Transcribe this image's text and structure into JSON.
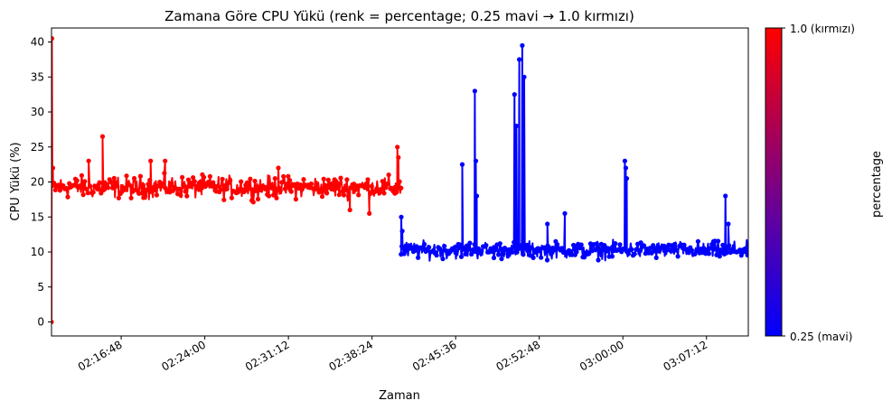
{
  "chart_data": {
    "type": "line",
    "title": "Zamana Göre CPU Yükü (renk = percentage; 0.25 mavi → 1.0 kırmızı)",
    "xlabel": "Zaman",
    "ylabel": "CPU Yükü (%)",
    "ylim": [
      -2,
      42
    ],
    "xlim": [
      "02:10:48",
      "03:10:48"
    ],
    "yticks": [
      0,
      5,
      10,
      15,
      20,
      25,
      30,
      35,
      40
    ],
    "xticks": [
      "02:16:48",
      "02:24:00",
      "02:31:12",
      "02:38:24",
      "02:45:36",
      "02:52:48",
      "03:00:00",
      "03:07:12"
    ],
    "grid": false,
    "colorbar": {
      "label": "percentage",
      "min_label": "0.25 (mavi)",
      "max_label": "1.0 (kırmızı)",
      "min_value": 0.25,
      "max_value": 1.0,
      "min_color": "#0000ff",
      "max_color": "#ff0000"
    },
    "series": [
      {
        "color": "#ff0000",
        "percentage": 1.0,
        "x_range": [
          "02:10:48",
          "02:40:54"
        ],
        "baseline": 19,
        "band": [
          17,
          21.5
        ],
        "points": [
          {
            "x": "02:10:48",
            "y": 0
          },
          {
            "x": "02:10:50",
            "y": 40.5
          },
          {
            "x": "02:10:55",
            "y": 22
          },
          {
            "x": "02:15:12",
            "y": 26.5
          },
          {
            "x": "02:14:00",
            "y": 23
          },
          {
            "x": "02:19:20",
            "y": 23
          },
          {
            "x": "02:20:35",
            "y": 23
          },
          {
            "x": "02:30:20",
            "y": 22
          },
          {
            "x": "02:38:10",
            "y": 15.5
          },
          {
            "x": "02:36:30",
            "y": 16
          },
          {
            "x": "02:40:35",
            "y": 25
          },
          {
            "x": "02:40:40",
            "y": 23.5
          }
        ]
      },
      {
        "color": "#0000ff",
        "percentage": 0.25,
        "x_range": [
          "02:40:54",
          "03:10:48"
        ],
        "baseline": 10,
        "band": [
          8.5,
          12
        ],
        "points": [
          {
            "x": "02:40:55",
            "y": 15
          },
          {
            "x": "02:41:00",
            "y": 13
          },
          {
            "x": "02:46:10",
            "y": 22.5
          },
          {
            "x": "02:47:15",
            "y": 33
          },
          {
            "x": "02:47:20",
            "y": 23
          },
          {
            "x": "02:47:25",
            "y": 18
          },
          {
            "x": "02:50:40",
            "y": 32.5
          },
          {
            "x": "02:50:50",
            "y": 28
          },
          {
            "x": "02:51:05",
            "y": 37.5
          },
          {
            "x": "02:51:20",
            "y": 39.5
          },
          {
            "x": "02:51:30",
            "y": 35
          },
          {
            "x": "02:55:00",
            "y": 15.5
          },
          {
            "x": "02:53:30",
            "y": 14
          },
          {
            "x": "03:00:10",
            "y": 23
          },
          {
            "x": "03:00:15",
            "y": 22
          },
          {
            "x": "03:00:20",
            "y": 20.5
          },
          {
            "x": "03:08:50",
            "y": 18
          },
          {
            "x": "03:09:05",
            "y": 14
          }
        ]
      }
    ]
  }
}
